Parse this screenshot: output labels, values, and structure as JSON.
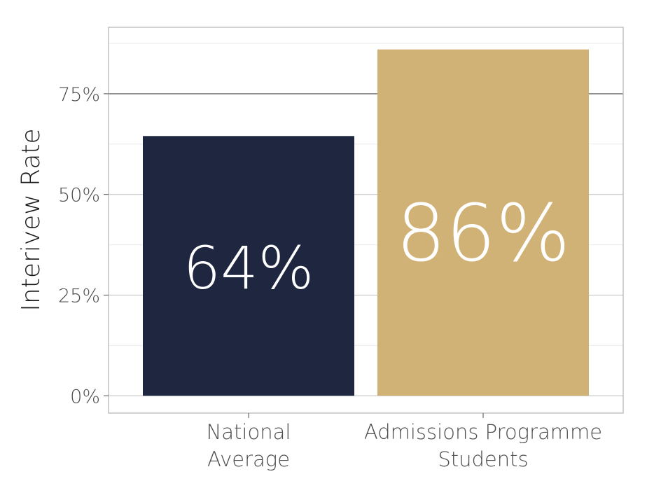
{
  "chart_data": {
    "type": "bar",
    "categories": [
      [
        "National",
        "Average"
      ],
      [
        "Admissions Programme",
        "Students"
      ]
    ],
    "values": [
      64.5,
      86
    ],
    "data_labels": [
      "64%",
      "86%"
    ],
    "colors": [
      "#1f2640",
      "#d0b276"
    ],
    "title": "",
    "xlabel": "",
    "ylabel": "Interivew Rate",
    "ylim": [
      -4.3,
      91.5
    ],
    "yticks": [
      0,
      25,
      50,
      75
    ],
    "ytick_labels": [
      "0%",
      "25%",
      "50%",
      "75%"
    ],
    "grid": true,
    "legend": "none"
  }
}
